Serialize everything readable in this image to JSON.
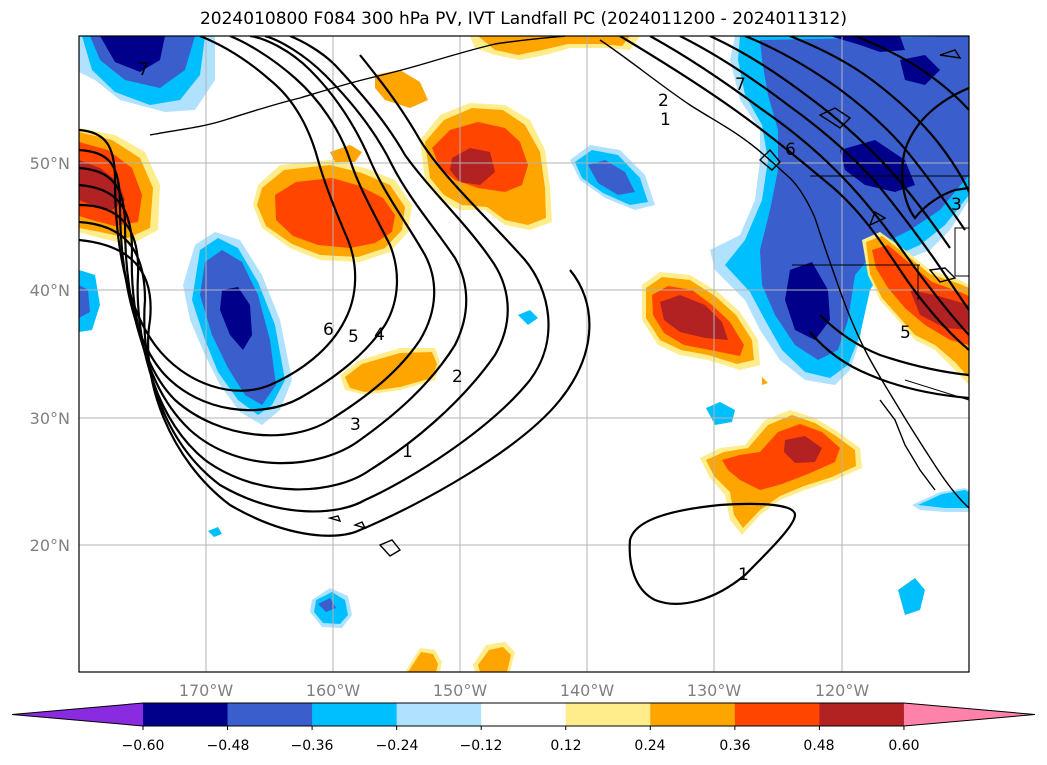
{
  "title": "2024010800 F084 300 hPa PV, IVT Landfall PC (2024011200 - 2024011312)",
  "map": {
    "lat_labels": [
      "50°N",
      "40°N",
      "30°N",
      "20°N"
    ],
    "lon_labels": [
      "170°W",
      "160°W",
      "150°W",
      "140°W",
      "130°W",
      "120°W"
    ],
    "gridlines": true,
    "contour_labels": [
      "7",
      "6",
      "5",
      "4",
      "3",
      "2",
      "1",
      "1",
      "7",
      "6",
      "5",
      "3",
      "1",
      "2"
    ]
  },
  "colorbar": {
    "colors": [
      "#8a2be2",
      "#00008b",
      "#3a5fcd",
      "#00bfff",
      "#b0e2ff",
      "#ffffff",
      "#ffec8b",
      "#ffa500",
      "#ff4500",
      "#b22222",
      "#ff82ab"
    ],
    "tick_labels": [
      "−0.60",
      "−0.48",
      "−0.36",
      "−0.24",
      "−0.12",
      "0.12",
      "0.24",
      "0.36",
      "0.48",
      "0.60"
    ]
  },
  "palette": {
    "neg_strong": "#00008b",
    "neg_mid": "#3a5fcd",
    "neg_light": "#00bfff",
    "pos_light": "#ffec8b",
    "pos_mid": "#ffa500",
    "pos_strong": "#ff4500",
    "pos_max": "#b22222"
  }
}
